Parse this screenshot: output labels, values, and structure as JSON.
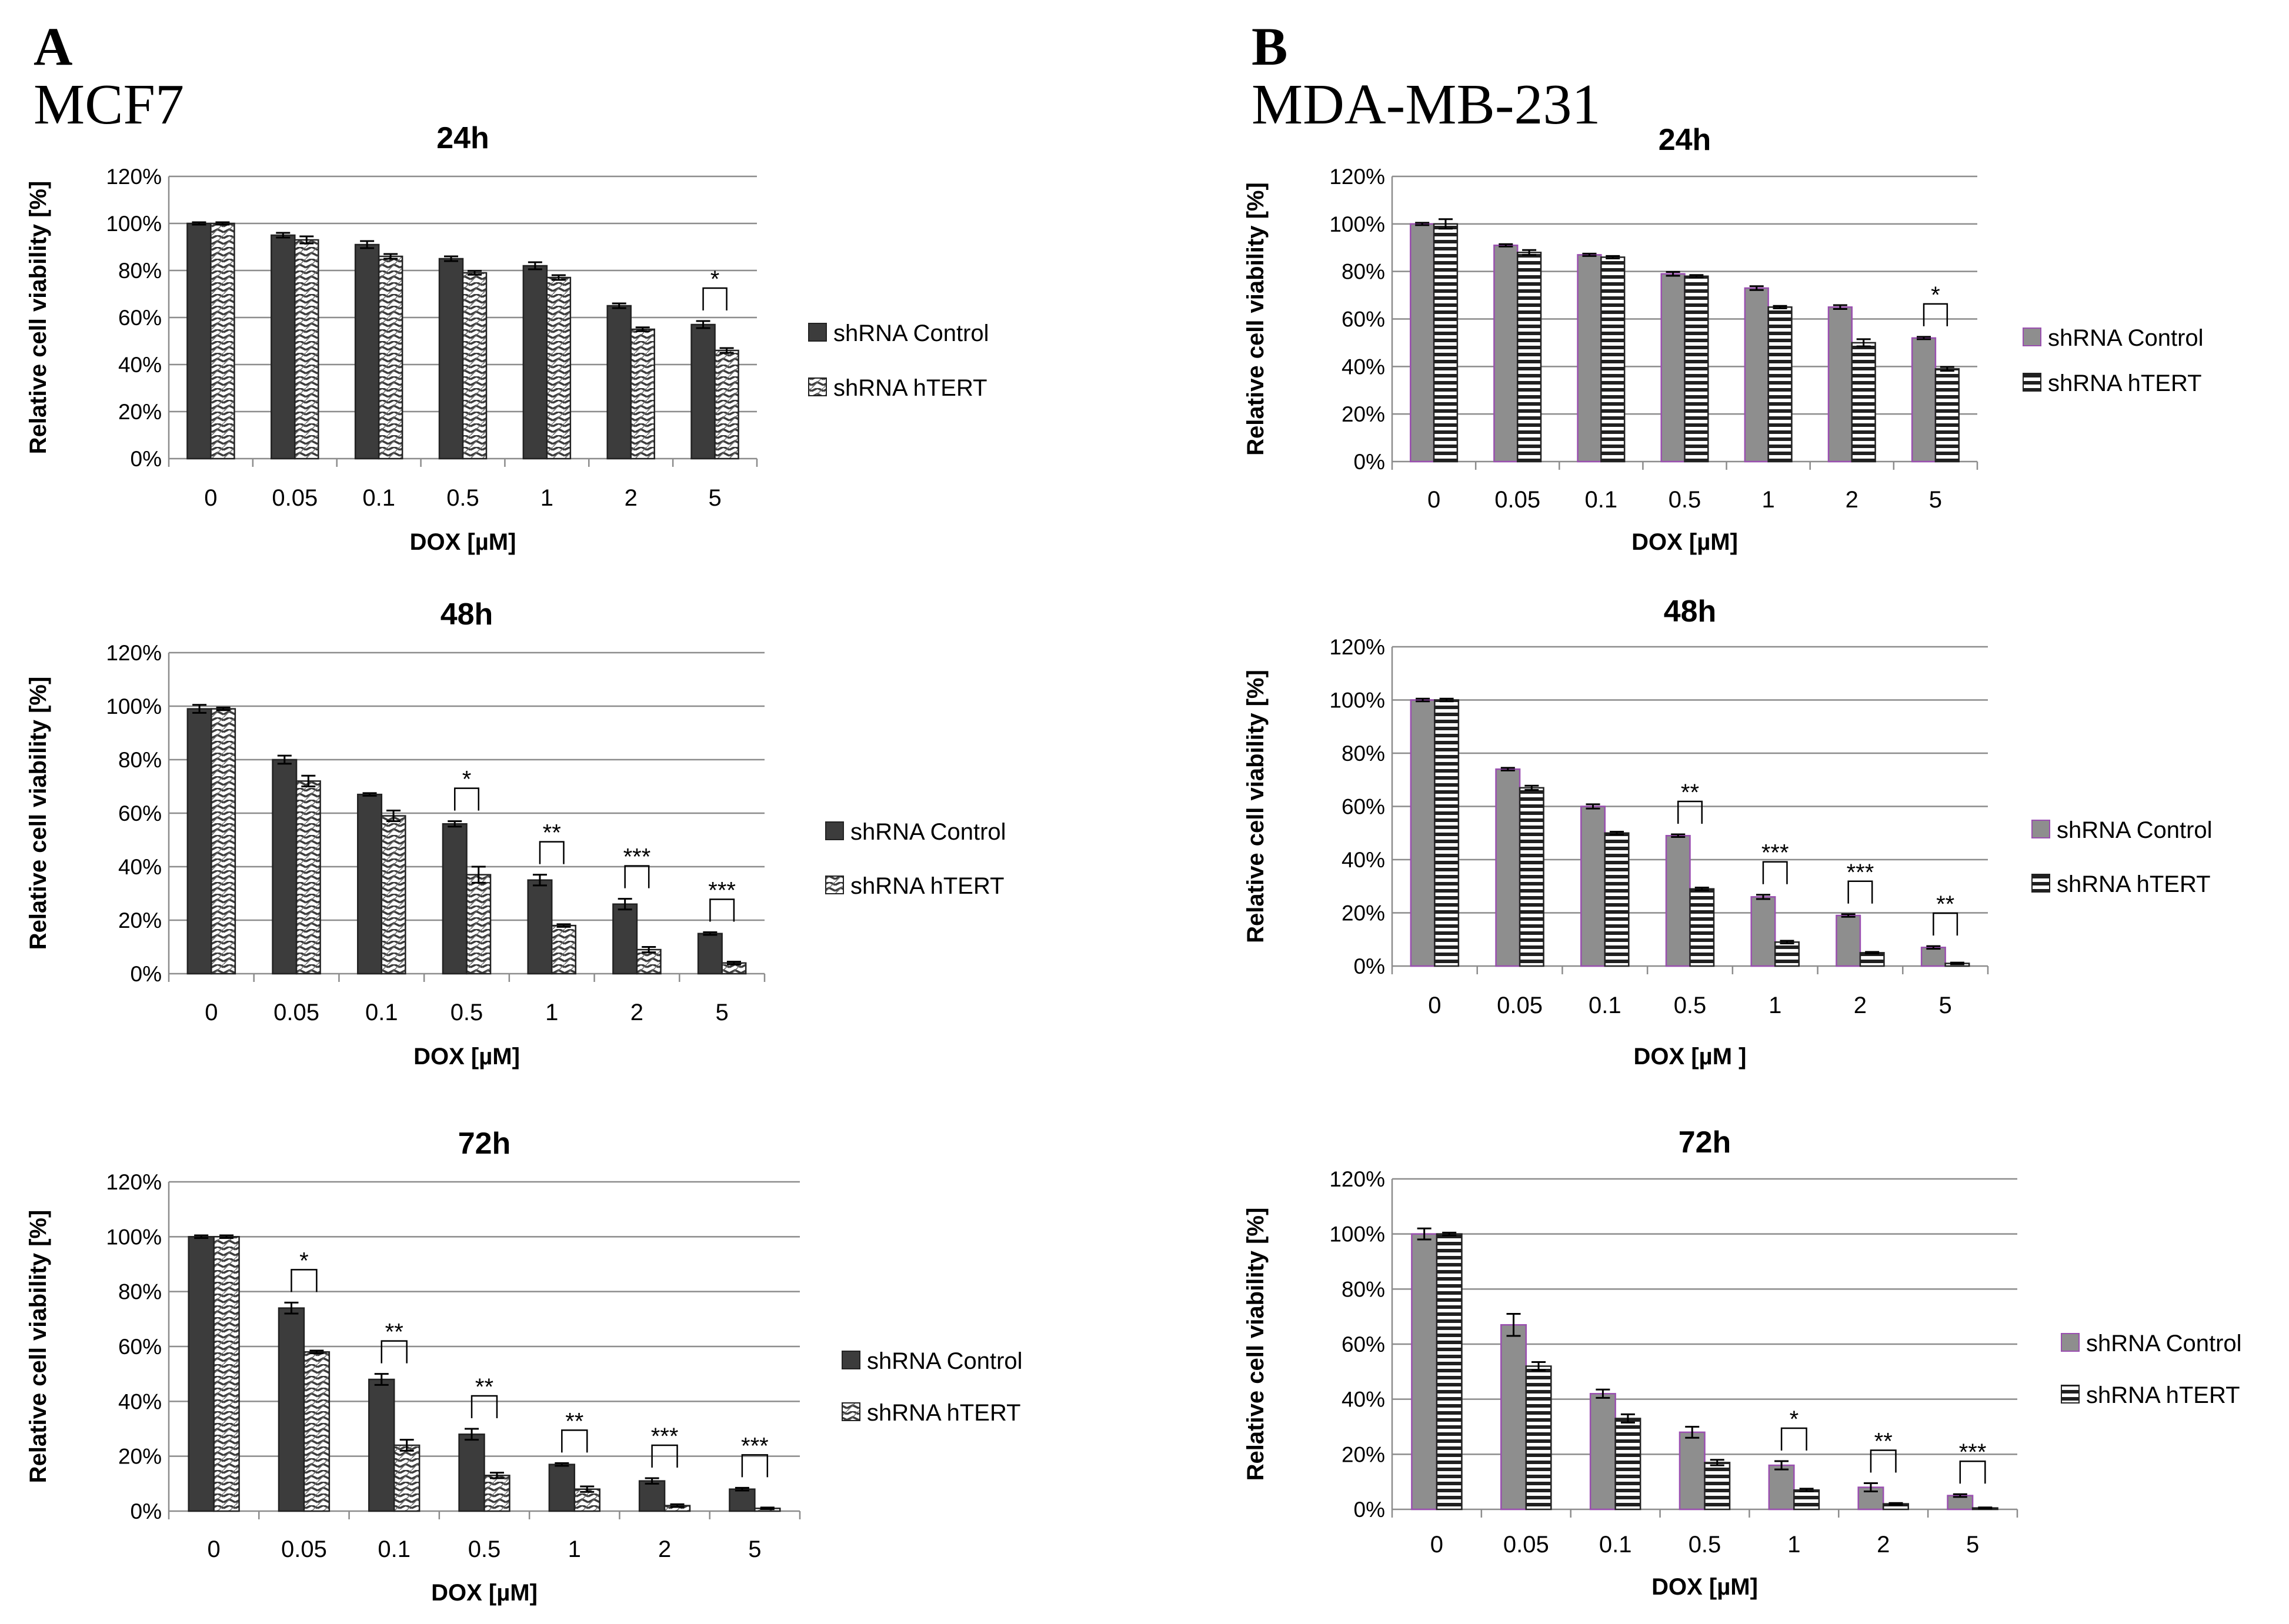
{
  "panels": [
    {
      "letter": "A",
      "cell_line": "MCF7"
    },
    {
      "letter": "B",
      "cell_line": "MDA-MB-231"
    }
  ],
  "colors": {
    "control_dark": "#3c3c3c",
    "control_gray": "#8e8e8e",
    "control_edge_purple": "#9a4fb0",
    "gridline": "#8c8c8c",
    "axis": "#8c8c8c"
  },
  "chart_data": [
    {
      "type": "bar",
      "panel": "A",
      "cell_line": "MCF7",
      "title": "24h",
      "categories": [
        "0",
        "0.05",
        "0.1",
        "0.5",
        "1",
        "2",
        "5"
      ],
      "ylabel": "Relative cell viability  [%]",
      "xlabel": "DOX [µM]",
      "ylim": [
        0,
        120
      ],
      "yticks": [
        "0%",
        "20%",
        "40%",
        "60%",
        "80%",
        "100%",
        "120%"
      ],
      "grid": true,
      "legend_position": "right",
      "series": [
        {
          "name": "shRNA Control",
          "pattern": "solid-dark",
          "values": [
            100,
            95,
            91,
            85,
            82,
            65,
            57
          ],
          "errors": [
            0.5,
            1,
            1.5,
            1,
            1.5,
            1,
            1.5
          ]
        },
        {
          "name": "shRNA hTERT",
          "pattern": "zigzag",
          "values": [
            100,
            93,
            86,
            79,
            77,
            55,
            46
          ],
          "errors": [
            0.5,
            1.5,
            1,
            0.8,
            1,
            0.8,
            1
          ]
        }
      ],
      "significance": [
        {
          "category": "5",
          "label": "*"
        }
      ]
    },
    {
      "type": "bar",
      "panel": "A",
      "cell_line": "MCF7",
      "title": "48h",
      "categories": [
        "0",
        "0.05",
        "0.1",
        "0.5",
        "1",
        "2",
        "5"
      ],
      "ylabel": "Relative cell viability  [%]",
      "xlabel": "DOX [µM]",
      "ylim": [
        0,
        120
      ],
      "yticks": [
        "0%",
        "20%",
        "40%",
        "60%",
        "80%",
        "100%",
        "120%"
      ],
      "grid": true,
      "legend_position": "right",
      "series": [
        {
          "name": "shRNA Control",
          "pattern": "solid-dark",
          "values": [
            99,
            80,
            67,
            56,
            35,
            26,
            15
          ],
          "errors": [
            1.5,
            1.5,
            0.5,
            1,
            2,
            2,
            0.5
          ]
        },
        {
          "name": "shRNA hTERT",
          "pattern": "zigzag",
          "values": [
            99,
            72,
            59,
            37,
            18,
            9,
            4
          ],
          "errors": [
            0.5,
            2,
            2,
            3,
            0.5,
            1,
            0.5
          ]
        }
      ],
      "significance": [
        {
          "category": "0.5",
          "label": "*"
        },
        {
          "category": "1",
          "label": "**"
        },
        {
          "category": "2",
          "label": "***"
        },
        {
          "category": "5",
          "label": "***"
        }
      ]
    },
    {
      "type": "bar",
      "panel": "A",
      "cell_line": "MCF7",
      "title": "72h",
      "categories": [
        "0",
        "0.05",
        "0.1",
        "0.5",
        "1",
        "2",
        "5"
      ],
      "ylabel": "Relative cell viability [%]",
      "xlabel": "DOX [µM]",
      "ylim": [
        0,
        120
      ],
      "yticks": [
        "0%",
        "20%",
        "40%",
        "60%",
        "80%",
        "100%",
        "120%"
      ],
      "grid": true,
      "legend_position": "right",
      "series": [
        {
          "name": "shRNA Control",
          "pattern": "solid-dark",
          "values": [
            100,
            74,
            48,
            28,
            17,
            11,
            8
          ],
          "errors": [
            0.5,
            2,
            2,
            2,
            0.5,
            1,
            0.5
          ]
        },
        {
          "name": "shRNA hTERT",
          "pattern": "zigzag",
          "values": [
            100,
            58,
            24,
            13,
            8,
            2,
            1
          ],
          "errors": [
            0.5,
            0.5,
            2,
            1,
            1,
            0.5,
            0.3
          ]
        }
      ],
      "significance": [
        {
          "category": "0.05",
          "label": "*"
        },
        {
          "category": "0.1",
          "label": "**"
        },
        {
          "category": "0.5",
          "label": "**"
        },
        {
          "category": "1",
          "label": "**"
        },
        {
          "category": "2",
          "label": "***"
        },
        {
          "category": "5",
          "label": "***"
        }
      ]
    },
    {
      "type": "bar",
      "panel": "B",
      "cell_line": "MDA-MB-231",
      "title": "24h",
      "categories": [
        "0",
        "0.05",
        "0.1",
        "0.5",
        "1",
        "2",
        "5"
      ],
      "ylabel": "Relative cell viability [%]",
      "xlabel": "DOX [µM]",
      "ylim": [
        0,
        120
      ],
      "yticks": [
        "0%",
        "20%",
        "40%",
        "60%",
        "80%",
        "100%",
        "120%"
      ],
      "grid": true,
      "legend_position": "right",
      "series": [
        {
          "name": "shRNA Control",
          "pattern": "solid-gray",
          "values": [
            100,
            91,
            87,
            79,
            73,
            65,
            52
          ],
          "errors": [
            0.5,
            0.5,
            0.5,
            0.8,
            0.8,
            0.8,
            0.5
          ]
        },
        {
          "name": "shRNA hTERT",
          "pattern": "horizontal-lines",
          "values": [
            100,
            88,
            86,
            78,
            65,
            50,
            39
          ],
          "errors": [
            2,
            1,
            0.5,
            0.5,
            0.5,
            1.5,
            0.8
          ]
        }
      ],
      "significance": [
        {
          "category": "5",
          "label": "*"
        }
      ]
    },
    {
      "type": "bar",
      "panel": "B",
      "cell_line": "MDA-MB-231",
      "title": "48h",
      "categories": [
        "0",
        "0.05",
        "0.1",
        "0.5",
        "1",
        "2",
        "5"
      ],
      "ylabel": "Relative cell viability [%]",
      "xlabel": "DOX [µM ]",
      "ylim": [
        0,
        120
      ],
      "yticks": [
        "0%",
        "20%",
        "40%",
        "60%",
        "80%",
        "100%",
        "120%"
      ],
      "grid": true,
      "legend_position": "right",
      "series": [
        {
          "name": "shRNA Control",
          "pattern": "solid-gray",
          "values": [
            100,
            74,
            60,
            49,
            26,
            19,
            7
          ],
          "errors": [
            0.5,
            0.5,
            0.8,
            0.5,
            0.8,
            0.5,
            0.5
          ]
        },
        {
          "name": "shRNA hTERT",
          "pattern": "horizontal-lines",
          "values": [
            100,
            67,
            50,
            29,
            9,
            5,
            1
          ],
          "errors": [
            0.5,
            0.8,
            0.5,
            0.5,
            0.5,
            0.3,
            0.3
          ]
        }
      ],
      "significance": [
        {
          "category": "0.5",
          "label": "**"
        },
        {
          "category": "1",
          "label": "***"
        },
        {
          "category": "2",
          "label": "***"
        },
        {
          "category": "5",
          "label": "**"
        }
      ]
    },
    {
      "type": "bar",
      "panel": "B",
      "cell_line": "MDA-MB-231",
      "title": "72h",
      "categories": [
        "0",
        "0.05",
        "0.1",
        "0.5",
        "1",
        "2",
        "5"
      ],
      "ylabel": "Relative cell viability [%]",
      "xlabel": "DOX [µM]",
      "ylim": [
        0,
        120
      ],
      "yticks": [
        "0%",
        "20%",
        "40%",
        "60%",
        "80%",
        "100%",
        "120%"
      ],
      "grid": true,
      "legend_position": "right",
      "series": [
        {
          "name": "shRNA Control",
          "pattern": "solid-gray",
          "values": [
            100,
            67,
            42,
            28,
            16,
            8,
            5
          ],
          "errors": [
            2,
            4,
            1.5,
            2,
            1.5,
            1.5,
            0.5
          ]
        },
        {
          "name": "shRNA hTERT",
          "pattern": "horizontal-lines",
          "values": [
            100,
            52,
            33,
            17,
            7,
            2,
            0.5
          ],
          "errors": [
            0.5,
            1.5,
            1.5,
            1,
            0.5,
            0.3,
            0.2
          ]
        }
      ],
      "significance": [
        {
          "category": "1",
          "label": "*"
        },
        {
          "category": "2",
          "label": "**"
        },
        {
          "category": "5",
          "label": "***"
        }
      ]
    }
  ]
}
